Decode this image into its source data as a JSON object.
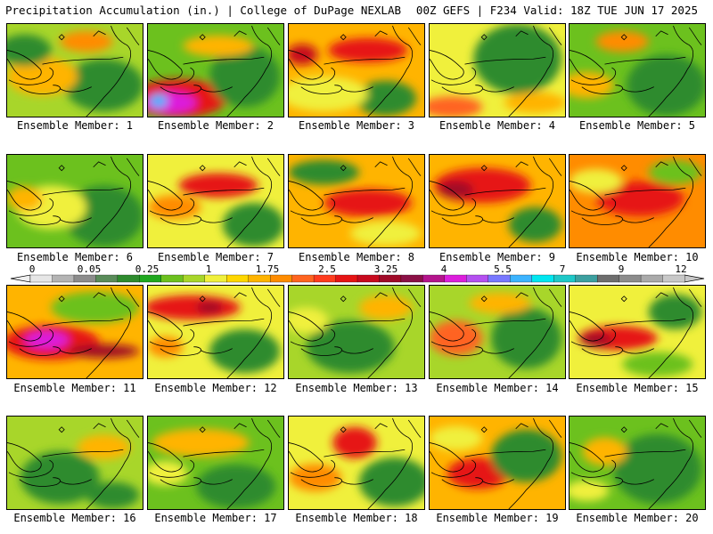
{
  "header": {
    "left_title": "Precipitation Accumulation (in.) | College of DuPage NEXLAB",
    "right_title": "00Z GEFS | F234 Valid: 18Z TUE JUN 17 2025"
  },
  "colorbar": {
    "tick_labels": [
      "0",
      "0.05",
      "0.25",
      "1",
      "1.75",
      "2.5",
      "3.25",
      "4",
      "5.5",
      "7",
      "9",
      "12"
    ],
    "colors": [
      "#e6e6e6",
      "#b4b4b4",
      "#8c8c8c",
      "#5a8c5a",
      "#2e8b2e",
      "#1fa81f",
      "#6cc11e",
      "#a8d62a",
      "#f0f03c",
      "#ffd700",
      "#ffb400",
      "#ff8c00",
      "#ff6420",
      "#ff3c1e",
      "#e61414",
      "#c80a1e",
      "#a00a28",
      "#8b1046",
      "#b4148c",
      "#dc1edc",
      "#b450f0",
      "#7878ff",
      "#3cb4ff",
      "#00e6f0",
      "#1ec8c8",
      "#3ca0a0",
      "#6e6e6e",
      "#8c8c8c",
      "#aaaaaa",
      "#c8c8c8"
    ]
  },
  "members": [
    {
      "label": "Ensemble Member: 1"
    },
    {
      "label": "Ensemble Member: 2"
    },
    {
      "label": "Ensemble Member: 3"
    },
    {
      "label": "Ensemble Member: 4"
    },
    {
      "label": "Ensemble Member: 5"
    },
    {
      "label": "Ensemble Member: 6"
    },
    {
      "label": "Ensemble Member: 7"
    },
    {
      "label": "Ensemble Member: 8"
    },
    {
      "label": "Ensemble Member: 9"
    },
    {
      "label": "Ensemble Member: 10"
    },
    {
      "label": "Ensemble Member: 11"
    },
    {
      "label": "Ensemble Member: 12"
    },
    {
      "label": "Ensemble Member: 13"
    },
    {
      "label": "Ensemble Member: 14"
    },
    {
      "label": "Ensemble Member: 15"
    },
    {
      "label": "Ensemble Member: 16"
    },
    {
      "label": "Ensemble Member: 17"
    },
    {
      "label": "Ensemble Member: 18"
    },
    {
      "label": "Ensemble Member: 19"
    },
    {
      "label": "Ensemble Member: 20"
    }
  ]
}
